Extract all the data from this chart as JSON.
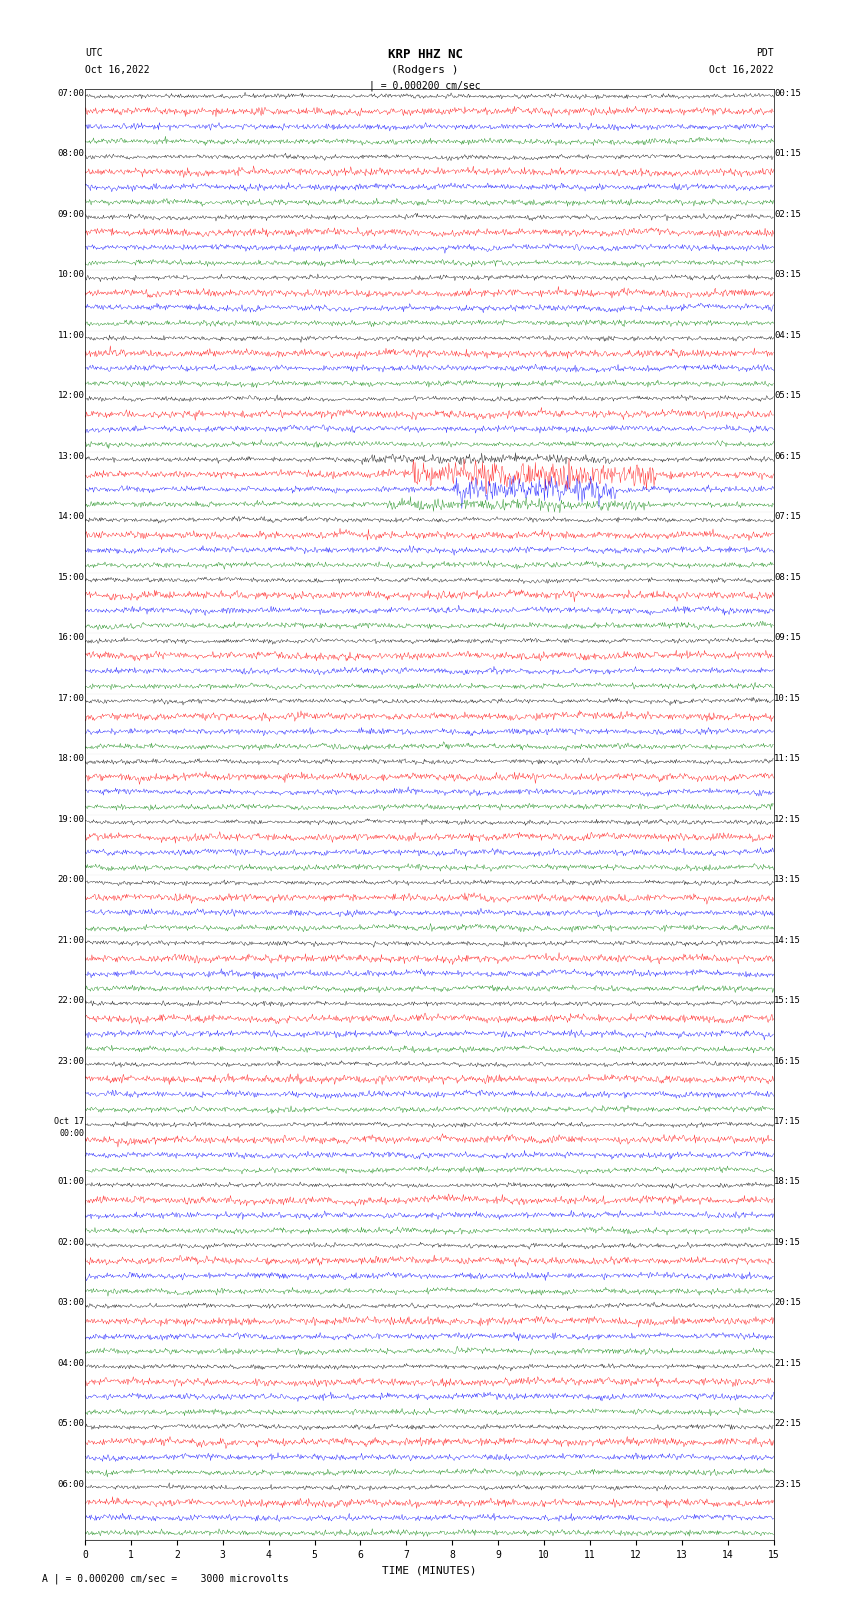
{
  "title_station": "KRP HHZ NC",
  "title_sub": "(Rodgers )",
  "scale_text": "| = 0.000200 cm/sec",
  "bottom_text": "A | = 0.000200 cm/sec =    3000 microvolts",
  "xlabel": "TIME (MINUTES)",
  "left_label": "UTC\nOct 16,2022",
  "right_label": "PDT\nOct 16,2022",
  "left_times": [
    "07:00",
    "08:00",
    "09:00",
    "10:00",
    "11:00",
    "12:00",
    "13:00",
    "14:00",
    "15:00",
    "16:00",
    "17:00",
    "18:00",
    "19:00",
    "20:00",
    "21:00",
    "22:00",
    "23:00",
    "Oct 17\n00:00",
    "01:00",
    "02:00",
    "03:00",
    "04:00",
    "05:00",
    "06:00"
  ],
  "right_times": [
    "00:15",
    "01:15",
    "02:15",
    "03:15",
    "04:15",
    "05:15",
    "06:15",
    "07:15",
    "08:15",
    "09:15",
    "10:15",
    "11:15",
    "12:15",
    "13:15",
    "14:15",
    "15:15",
    "16:15",
    "17:15",
    "18:15",
    "19:15",
    "20:15",
    "21:15",
    "22:15",
    "23:15"
  ],
  "colors": [
    "black",
    "red",
    "blue",
    "green"
  ],
  "n_rows": 24,
  "traces_per_row": 4,
  "noise_amp": [
    0.15,
    0.25,
    0.2,
    0.18
  ],
  "bg_color": "#ffffff",
  "fig_width": 8.5,
  "fig_height": 16.13,
  "dpi": 100,
  "xmin": 0,
  "xmax": 15,
  "xticks": [
    0,
    1,
    2,
    3,
    4,
    5,
    6,
    7,
    8,
    9,
    10,
    11,
    12,
    13,
    14,
    15
  ]
}
